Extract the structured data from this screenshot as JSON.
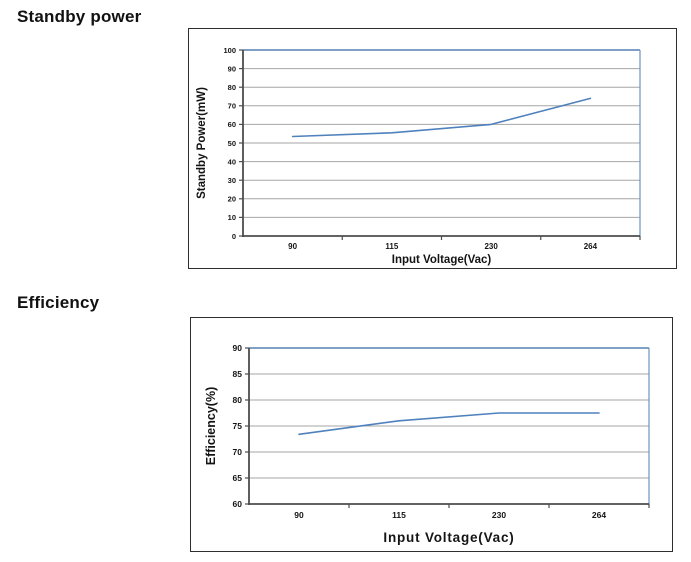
{
  "page_titles": {
    "standby_power": "Standby power",
    "efficiency": "Efficiency"
  },
  "colors": {
    "series_line": "#4f81bd",
    "plot_border_blue": "#6b93bf",
    "gridline": "#a6a6a6",
    "axis": "#4d4d4d",
    "box_border": "#2e2e2e",
    "text": "#141414",
    "heading": "#111111",
    "background": "#ffffff"
  },
  "chart_data": [
    {
      "type": "line",
      "title": "Standby power",
      "categories": [
        "90",
        "115",
        "230",
        "264"
      ],
      "series": [
        {
          "name": "Standby Power",
          "values": [
            53.5,
            55.5,
            60,
            74
          ]
        }
      ],
      "xlabel": "Input Voltage(Vac)",
      "ylabel": "Standby Power(mW)",
      "ylim": [
        0,
        100
      ],
      "ytick_step": 10,
      "yticks": [
        0,
        10,
        20,
        30,
        40,
        50,
        60,
        70,
        80,
        90,
        100
      ],
      "grid": true,
      "legend": "none"
    },
    {
      "type": "line",
      "title": "Efficiency",
      "categories": [
        "90",
        "115",
        "230",
        "264"
      ],
      "series": [
        {
          "name": "Efficiency",
          "values": [
            73.4,
            76,
            77.5,
            77.5
          ]
        }
      ],
      "xlabel": "Input Voltage(Vac)",
      "ylabel": "Efficiency(%)",
      "ylim": [
        60,
        90
      ],
      "ytick_step": 5,
      "yticks": [
        60,
        65,
        70,
        75,
        80,
        85,
        90
      ],
      "grid": true,
      "legend": "none"
    }
  ]
}
